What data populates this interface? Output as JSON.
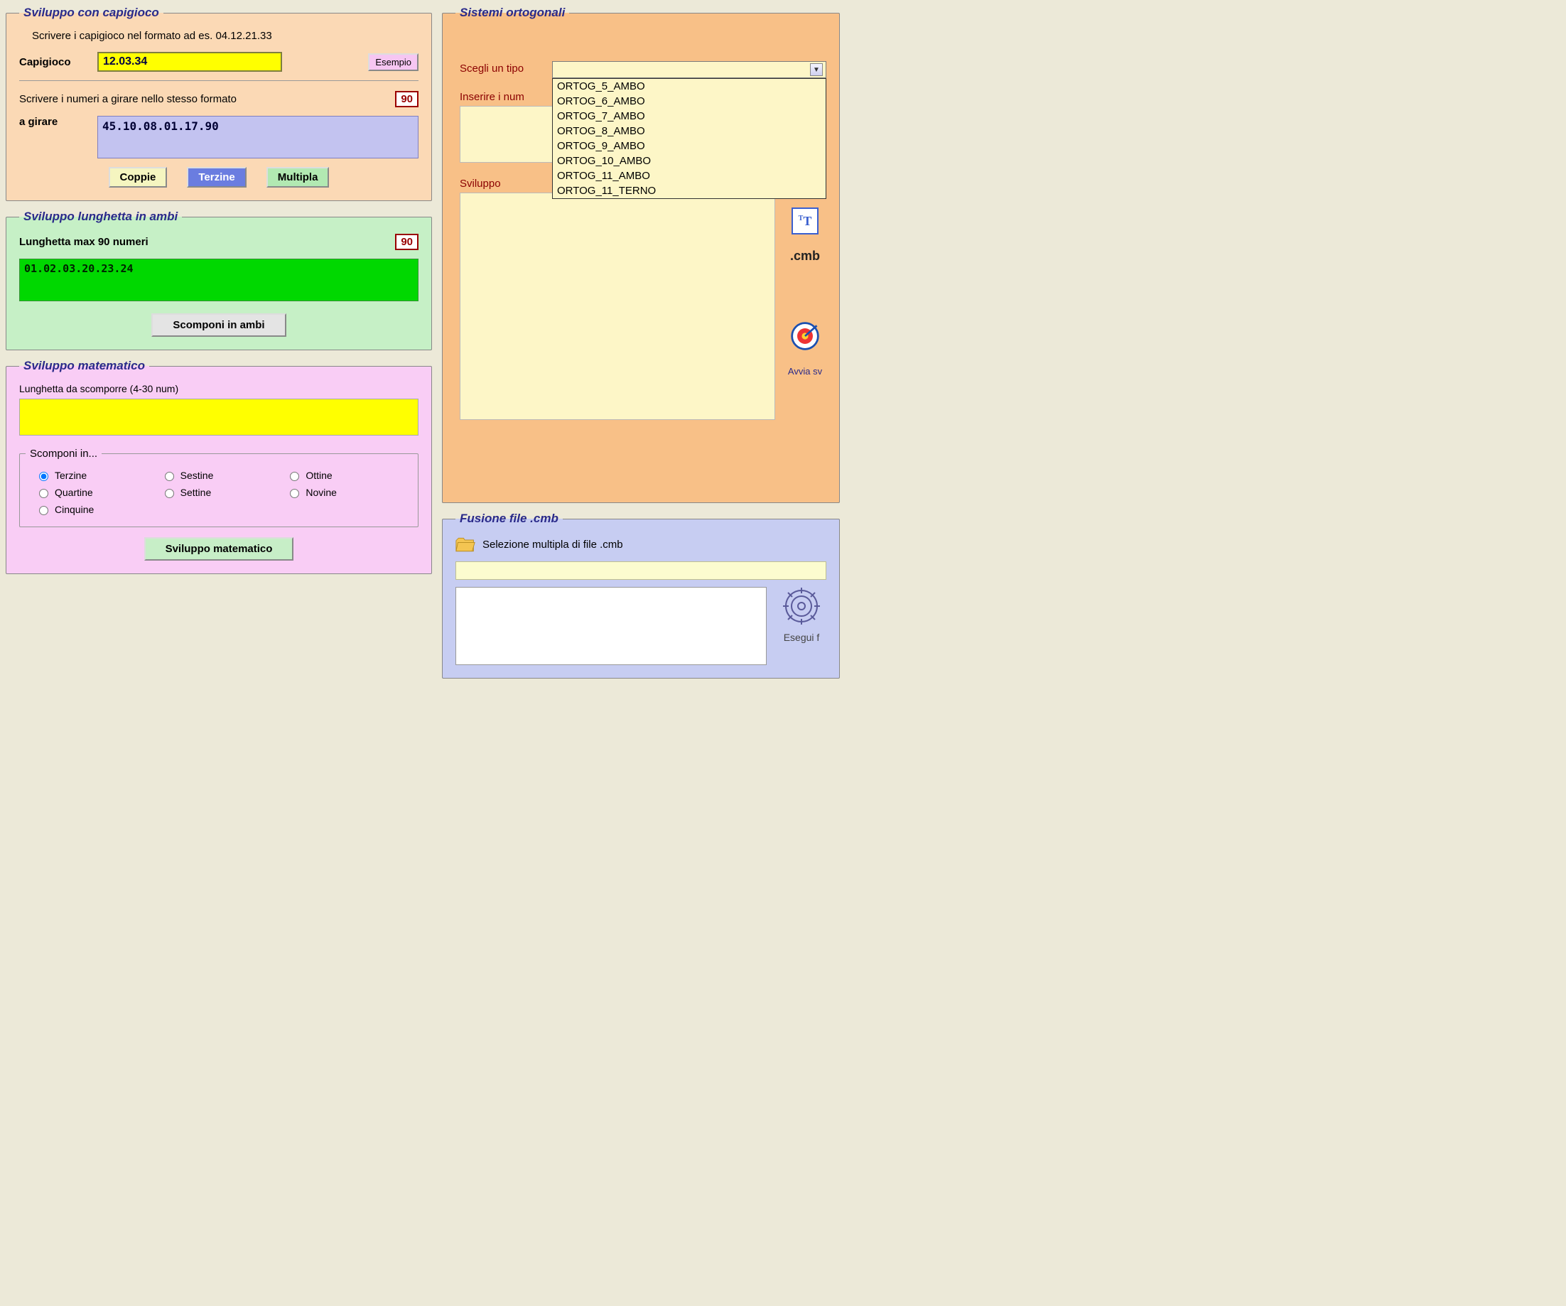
{
  "capigioco": {
    "legend": "Sviluppo con capigioco",
    "instruction": "Scrivere i capigioco nel formato ad es. 04.12.21.33",
    "capigioco_label": "Capigioco",
    "capigioco_value": "12.03.34",
    "esempio_btn": "Esempio",
    "girare_instruction": "Scrivere i numeri a girare nello stesso formato",
    "badge_90": "90",
    "girare_label": "a girare",
    "girare_value": "45.10.08.01.17.90",
    "btn_coppie": "Coppie",
    "btn_terzine": "Terzine",
    "btn_multipla": "Multipla"
  },
  "lunghetta": {
    "legend": "Sviluppo lunghetta in ambi",
    "max_label": "Lunghetta max 90 numeri",
    "badge_90": "90",
    "value": "01.02.03.20.23.24",
    "btn_scomponi": "Scomponi in ambi"
  },
  "matematico": {
    "legend": "Sviluppo matematico",
    "desc": "Lunghetta da scomporre (4-30 num)",
    "value": "",
    "inner_legend": "Scomponi in...",
    "radios": {
      "terzine": "Terzine",
      "sestine": "Sestine",
      "ottine": "Ottine",
      "quartine": "Quartine",
      "settine": "Settine",
      "novine": "Novine",
      "cinquine": "Cinquine"
    },
    "selected": "terzine",
    "btn": "Sviluppo matematico"
  },
  "sistemi": {
    "legend": "Sistemi ortogonali",
    "type_label": "Scegli un tipo",
    "options": [
      "ORTOG_5_AMBO",
      "ORTOG_6_AMBO",
      "ORTOG_7_AMBO",
      "ORTOG_8_AMBO",
      "ORTOG_9_AMBO",
      "ORTOG_10_AMBO",
      "ORTOG_11_AMBO",
      "ORTOG_11_TERNO"
    ],
    "inserire_label": "Inserire i num",
    "sviluppo_label": "Sviluppo",
    "icon_T": "T",
    "cmb_label": ".cmb",
    "avvia_label": "Avvia sv"
  },
  "fusione": {
    "legend": "Fusione file .cmb",
    "selezione_label": "Selezione multipla di file .cmb",
    "esegui_label": "Esegui f"
  },
  "colors": {
    "peach": "#fbd9b5",
    "green_panel": "#c6f0c6",
    "pink_panel": "#f9cdf5",
    "orange_panel": "#f8c087",
    "lilac_panel": "#c7cdf2",
    "yellow_input": "#ffff00",
    "lilac_input": "#c3c3f0",
    "green_input": "#00d800",
    "pale_yellow": "#fdf6c7",
    "legend_text": "#2a2a8a",
    "sub_label": "#8b0000",
    "badge_border": "#990000"
  }
}
